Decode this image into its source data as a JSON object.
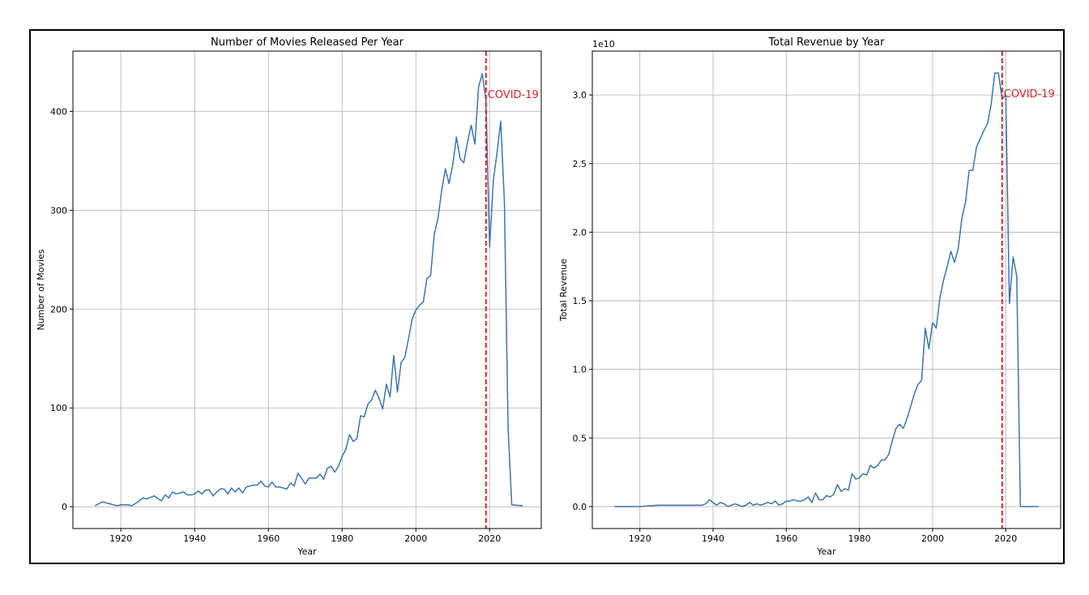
{
  "chart_data": [
    {
      "type": "line",
      "title": "Number of Movies Released Per Year",
      "xlabel": "Year",
      "ylabel": "Number of Movies",
      "xlim": [
        1907,
        2034
      ],
      "ylim": [
        -22,
        461
      ],
      "x_ticks": [
        1920,
        1940,
        1960,
        1980,
        2000,
        2020
      ],
      "y_ticks": [
        0,
        100,
        200,
        300,
        400
      ],
      "grid": true,
      "line_color": "#3b75af",
      "series": [
        {
          "x": [
            1913,
            1915,
            1917,
            1919,
            1920,
            1922,
            1923,
            1925,
            1926,
            1927,
            1929,
            1931,
            1932,
            1933,
            1934,
            1935,
            1936,
            1937,
            1938,
            1939,
            1940,
            1941,
            1942,
            1943,
            1944,
            1945,
            1946,
            1947,
            1948,
            1949,
            1950,
            1951,
            1952,
            1953,
            1954,
            1955,
            1956,
            1957,
            1958,
            1959,
            1960,
            1961,
            1962,
            1963,
            1964,
            1965,
            1966,
            1967,
            1968,
            1969,
            1970,
            1971,
            1972,
            1973,
            1974,
            1975,
            1976,
            1977,
            1978,
            1979,
            1980,
            1981,
            1982,
            1983,
            1984,
            1985,
            1986,
            1987,
            1988,
            1989,
            1990,
            1991,
            1992,
            1993,
            1994,
            1995,
            1996,
            1997,
            1998,
            1999,
            2000,
            2001,
            2002,
            2003,
            2004,
            2005,
            2006,
            2007,
            2008,
            2009,
            2010,
            2011,
            2012,
            2013,
            2014,
            2015,
            2016,
            2017,
            2018,
            2019,
            2020,
            2021,
            2022,
            2023,
            2024,
            2025,
            2026,
            2029
          ],
          "y": [
            1,
            5,
            3,
            1,
            2,
            2,
            1,
            6,
            9,
            8,
            11,
            6,
            12,
            9,
            15,
            13,
            14,
            15,
            12,
            12,
            13,
            16,
            13,
            17,
            17,
            11,
            15,
            18,
            18,
            13,
            19,
            15,
            19,
            14,
            20,
            21,
            22,
            22,
            26,
            21,
            20,
            25,
            20,
            20,
            19,
            18,
            24,
            21,
            34,
            29,
            23,
            29,
            29,
            29,
            33,
            28,
            39,
            41,
            35,
            41,
            51,
            58,
            73,
            66,
            69,
            92,
            91,
            104,
            108,
            118,
            110,
            99,
            124,
            111,
            153,
            116,
            146,
            151,
            170,
            190,
            199,
            204,
            207,
            231,
            234,
            276,
            292,
            320,
            342,
            327,
            346,
            374,
            352,
            348,
            369,
            386,
            367,
            425,
            438,
            411,
            263,
            330,
            358,
            390,
            309,
            80,
            2,
            1
          ]
        }
      ],
      "vline": {
        "x": 2019,
        "color": "#d62728",
        "label": "COVID-19"
      }
    },
    {
      "type": "line",
      "title": "Total Revenue by Year",
      "xlabel": "Year",
      "ylabel": "Total Revenue",
      "scale_label": "1e10",
      "xlim": [
        1907,
        2035
      ],
      "ylim": [
        -0.16,
        3.32
      ],
      "x_ticks": [
        1920,
        1940,
        1960,
        1980,
        2000,
        2020
      ],
      "y_ticks": [
        0.0,
        0.5,
        1.0,
        1.5,
        2.0,
        2.5,
        3.0
      ],
      "y_tick_labels": [
        "0.0",
        "0.5",
        "1.0",
        "1.5",
        "2.0",
        "2.5",
        "3.0"
      ],
      "grid": true,
      "line_color": "#3b75af",
      "series": [
        {
          "x": [
            1913,
            1920,
            1925,
            1930,
            1935,
            1937,
            1938,
            1939,
            1940,
            1941,
            1942,
            1943,
            1944,
            1945,
            1946,
            1947,
            1948,
            1949,
            1950,
            1951,
            1952,
            1953,
            1954,
            1955,
            1956,
            1957,
            1958,
            1959,
            1960,
            1961,
            1962,
            1963,
            1964,
            1965,
            1966,
            1967,
            1968,
            1969,
            1970,
            1971,
            1972,
            1973,
            1974,
            1975,
            1976,
            1977,
            1978,
            1979,
            1980,
            1981,
            1982,
            1983,
            1984,
            1985,
            1986,
            1987,
            1988,
            1989,
            1990,
            1991,
            1992,
            1993,
            1994,
            1995,
            1996,
            1997,
            1998,
            1999,
            2000,
            2001,
            2002,
            2003,
            2004,
            2005,
            2006,
            2007,
            2008,
            2009,
            2010,
            2011,
            2012,
            2013,
            2014,
            2015,
            2016,
            2017,
            2018,
            2019,
            2020,
            2021,
            2022,
            2023,
            2024,
            2029
          ],
          "y": [
            0.0,
            0.0,
            0.01,
            0.01,
            0.01,
            0.01,
            0.02,
            0.05,
            0.03,
            0.01,
            0.03,
            0.02,
            0.0,
            0.01,
            0.02,
            0.01,
            0.0,
            0.01,
            0.03,
            0.01,
            0.02,
            0.01,
            0.02,
            0.03,
            0.02,
            0.04,
            0.01,
            0.02,
            0.04,
            0.04,
            0.05,
            0.04,
            0.04,
            0.05,
            0.07,
            0.03,
            0.1,
            0.05,
            0.05,
            0.08,
            0.07,
            0.09,
            0.16,
            0.11,
            0.13,
            0.12,
            0.24,
            0.2,
            0.21,
            0.24,
            0.23,
            0.3,
            0.28,
            0.3,
            0.34,
            0.34,
            0.38,
            0.48,
            0.57,
            0.6,
            0.57,
            0.64,
            0.73,
            0.82,
            0.89,
            0.92,
            1.3,
            1.15,
            1.34,
            1.3,
            1.52,
            1.65,
            1.75,
            1.86,
            1.78,
            1.88,
            2.1,
            2.22,
            2.45,
            2.45,
            2.62,
            2.68,
            2.74,
            2.79,
            2.93,
            3.16,
            3.16,
            2.97,
            3.0,
            1.48,
            1.82,
            1.68,
            0.0,
            0.0
          ]
        }
      ],
      "vline": {
        "x": 2019,
        "color": "#d62728",
        "label": "COVID-19"
      }
    }
  ]
}
